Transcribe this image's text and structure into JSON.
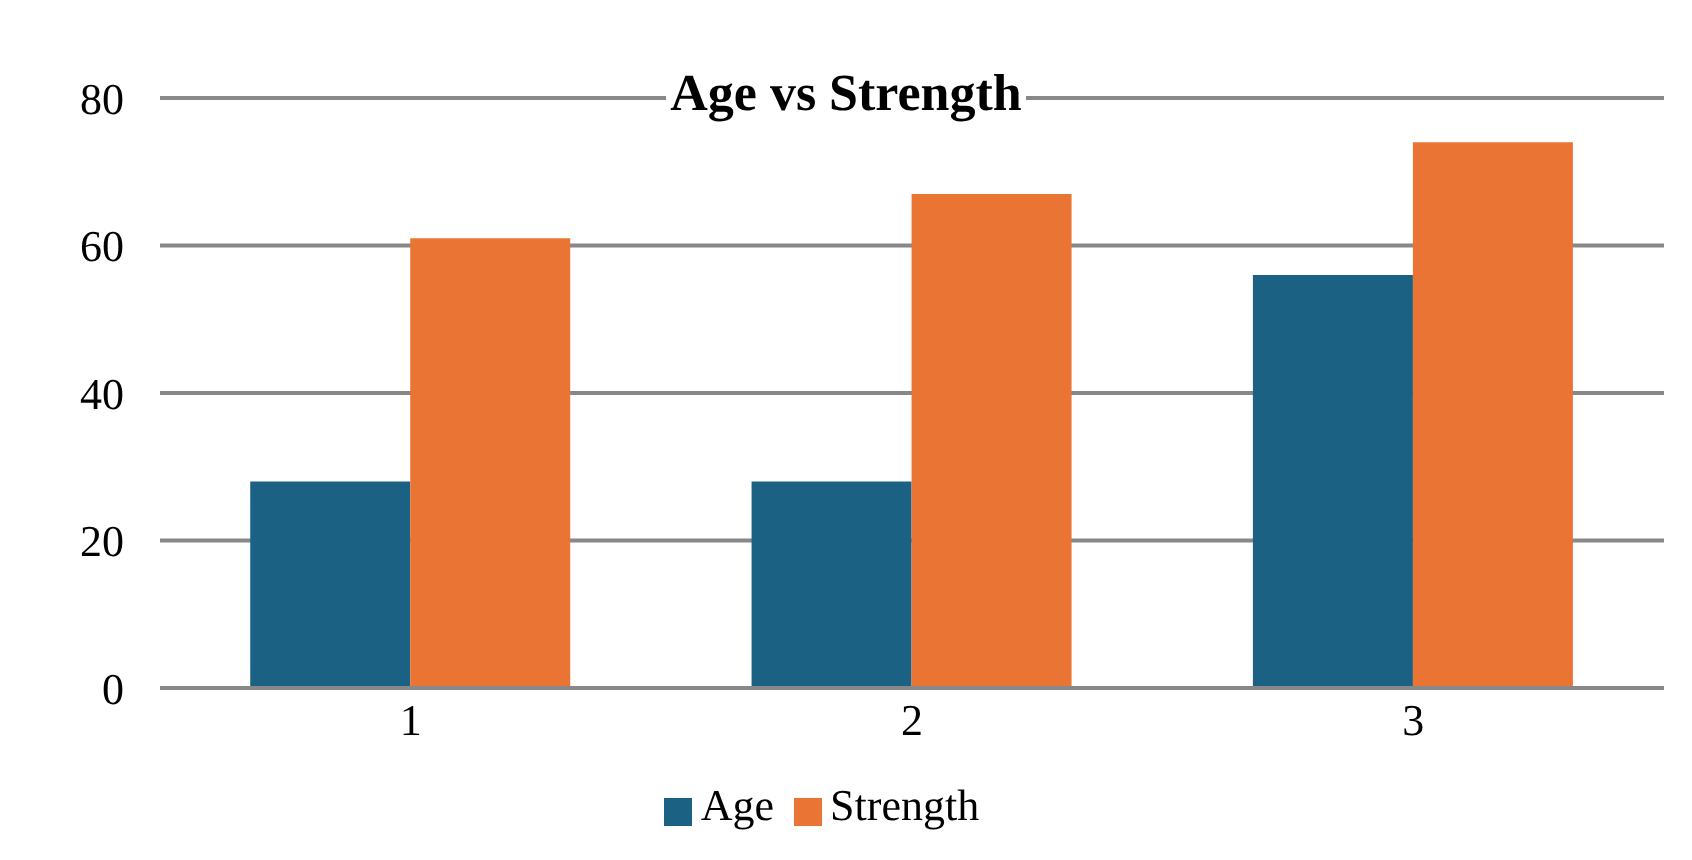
{
  "chart_data": {
    "type": "bar",
    "title": "Age vs Strength",
    "categories": [
      "1",
      "2",
      "3"
    ],
    "series": [
      {
        "name": "Age",
        "color": "#1b6183",
        "values": [
          28,
          28,
          56
        ]
      },
      {
        "name": "Strength",
        "color": "#e97434",
        "values": [
          61,
          67,
          74
        ]
      }
    ],
    "ylim": [
      0,
      80
    ],
    "yticks": [
      0,
      20,
      40,
      60,
      80
    ],
    "grid": "y",
    "legend": "bottom"
  }
}
